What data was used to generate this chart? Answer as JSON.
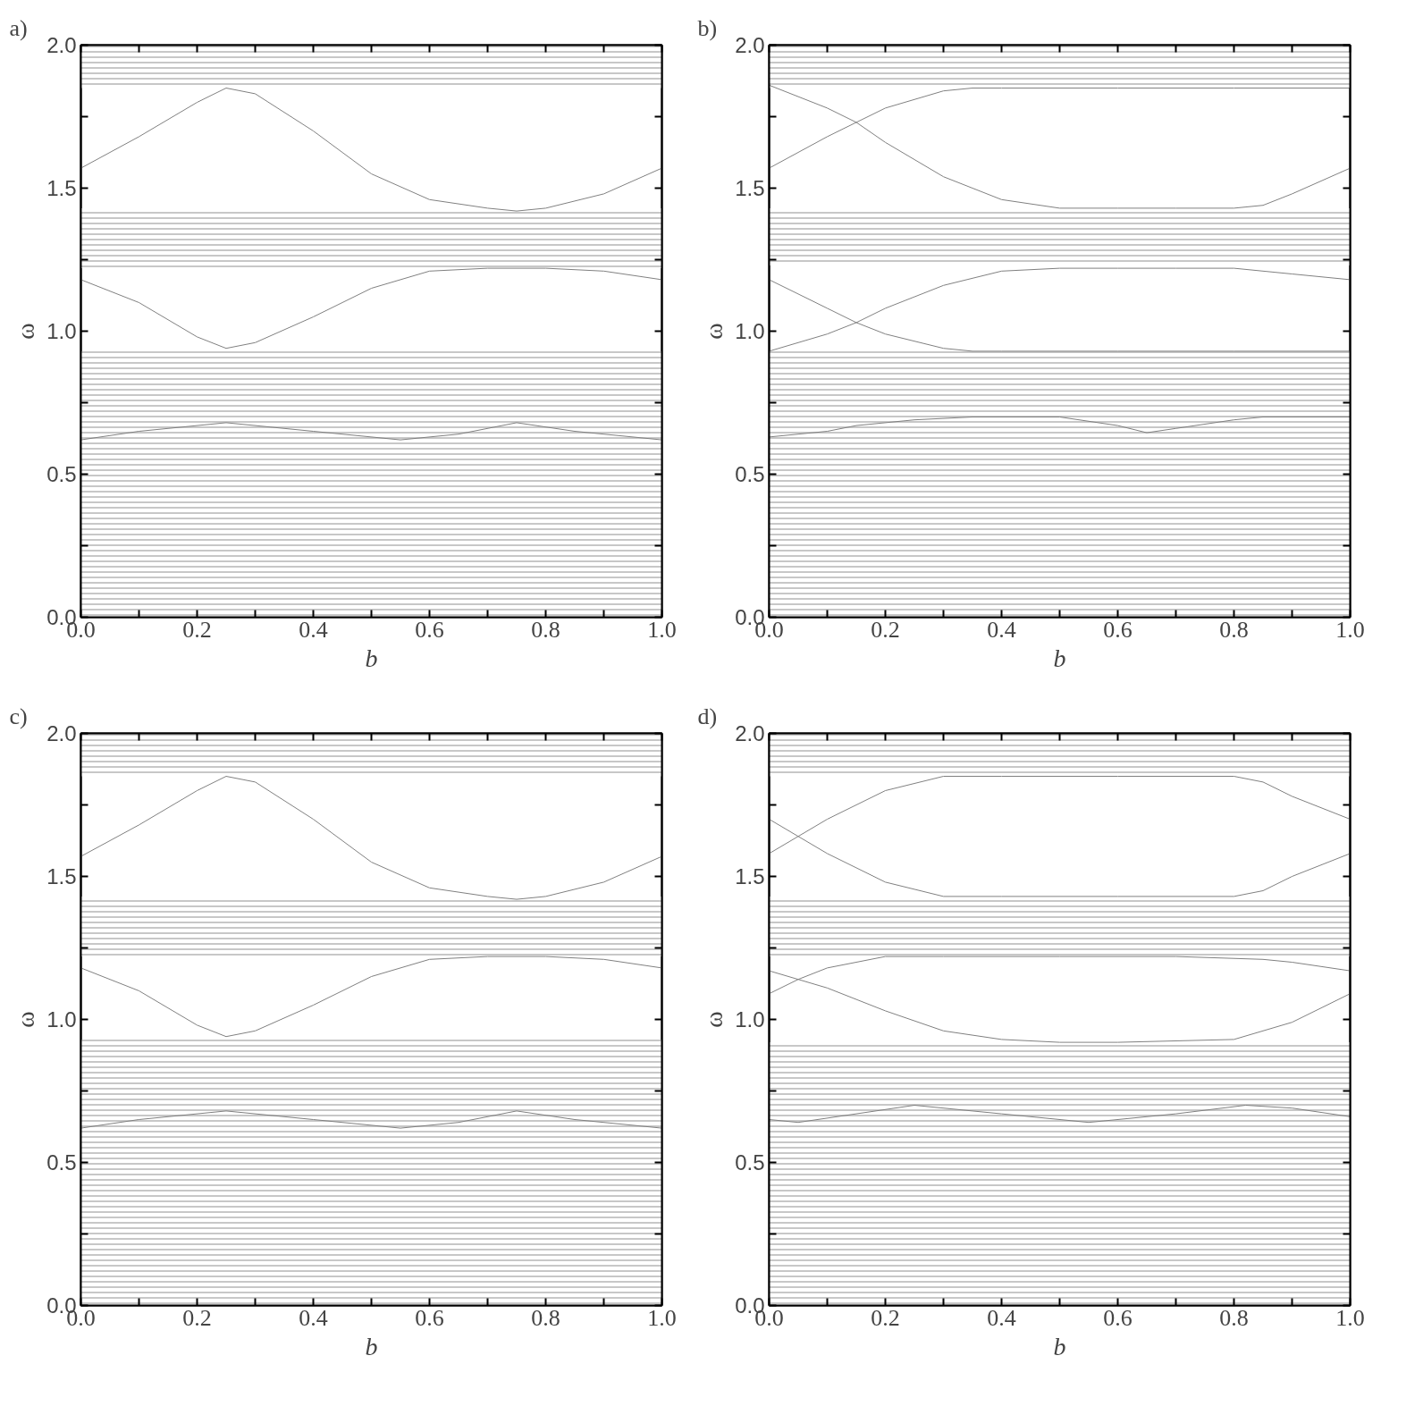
{
  "chart_data": [
    {
      "type": "line",
      "title": "a)",
      "xlabel": "b",
      "ylabel": "ω",
      "xlim": [
        0,
        1
      ],
      "ylim": [
        0,
        2
      ],
      "grid": false,
      "marker": "none",
      "line_style": "solid",
      "xticks": [
        {
          "value": 0,
          "label": "0.0"
        },
        {
          "value": 0.1,
          "label": null
        },
        {
          "value": 0.2,
          "label": "0.2"
        },
        {
          "value": 0.3,
          "label": null
        },
        {
          "value": 0.4,
          "label": "0.4"
        },
        {
          "value": 0.5,
          "label": null
        },
        {
          "value": 0.6,
          "label": "0.6"
        },
        {
          "value": 0.7,
          "label": null
        },
        {
          "value": 0.8,
          "label": "0.8"
        },
        {
          "value": 0.9,
          "label": null
        },
        {
          "value": 1,
          "label": "1.0"
        }
      ],
      "yticks": [
        {
          "value": 0,
          "label": "0.0"
        },
        {
          "value": 0.25,
          "label": null
        },
        {
          "value": 0.5,
          "label": "0.5"
        },
        {
          "value": 0.75,
          "label": null
        },
        {
          "value": 1,
          "label": "1.0"
        },
        {
          "value": 1.25,
          "label": null
        },
        {
          "value": 1.5,
          "label": "1.5"
        },
        {
          "value": 1.75,
          "label": null
        },
        {
          "value": 2,
          "label": "2.0"
        }
      ],
      "bands": [
        {
          "axis": "y",
          "from": 1.85,
          "to": 2.0,
          "color": "#909090"
        },
        {
          "axis": "y",
          "from": 1.22,
          "to": 1.43,
          "color": "#909090"
        },
        {
          "axis": "y",
          "from": 0,
          "to": 0.93,
          "color": "#909090"
        }
      ],
      "series": [
        {
          "color": "#808080",
          "x": [
            0,
            0.1,
            0.2,
            0.25,
            0.3,
            0.4,
            0.5,
            0.6,
            0.7,
            0.75,
            0.8,
            0.9,
            1.0
          ],
          "values": [
            1.57,
            1.68,
            1.8,
            1.85,
            1.83,
            1.7,
            1.55,
            1.46,
            1.43,
            1.42,
            1.43,
            1.48,
            1.57
          ]
        },
        {
          "color": "#808080",
          "x": [
            0,
            0.1,
            0.2,
            0.25,
            0.3,
            0.4,
            0.5,
            0.6,
            0.7,
            0.8,
            0.9,
            1.0
          ],
          "values": [
            1.18,
            1.1,
            0.98,
            0.94,
            0.96,
            1.05,
            1.15,
            1.21,
            1.22,
            1.22,
            1.21,
            1.18
          ]
        },
        {
          "color": "#808080",
          "x": [
            0,
            0.1,
            0.25,
            0.4,
            0.55,
            0.65,
            0.75,
            0.85,
            1.0
          ],
          "values": [
            0.62,
            0.65,
            0.68,
            0.65,
            0.62,
            0.64,
            0.68,
            0.65,
            0.62
          ]
        }
      ]
    },
    {
      "type": "line",
      "title": "b)",
      "xlabel": "b",
      "ylabel": "ω",
      "xlim": [
        0,
        1
      ],
      "ylim": [
        0,
        2
      ],
      "grid": false,
      "marker": "none",
      "line_style": "solid",
      "xticks": [
        {
          "value": 0,
          "label": "0.0"
        },
        {
          "value": 0.1,
          "label": null
        },
        {
          "value": 0.2,
          "label": "0.2"
        },
        {
          "value": 0.3,
          "label": null
        },
        {
          "value": 0.4,
          "label": "0.4"
        },
        {
          "value": 0.5,
          "label": null
        },
        {
          "value": 0.6,
          "label": "0.6"
        },
        {
          "value": 0.7,
          "label": null
        },
        {
          "value": 0.8,
          "label": "0.8"
        },
        {
          "value": 0.9,
          "label": null
        },
        {
          "value": 1,
          "label": "1.0"
        }
      ],
      "yticks": [
        {
          "value": 0,
          "label": "0.0"
        },
        {
          "value": 0.25,
          "label": null
        },
        {
          "value": 0.5,
          "label": "0.5"
        },
        {
          "value": 0.75,
          "label": null
        },
        {
          "value": 1,
          "label": "1.0"
        },
        {
          "value": 1.25,
          "label": null
        },
        {
          "value": 1.5,
          "label": "1.5"
        },
        {
          "value": 1.75,
          "label": null
        },
        {
          "value": 2,
          "label": "2.0"
        }
      ],
      "bands": [
        {
          "axis": "y",
          "from": 1.85,
          "to": 2.0,
          "color": "#909090"
        },
        {
          "axis": "y",
          "from": 1.23,
          "to": 1.43,
          "color": "#909090"
        },
        {
          "axis": "y",
          "from": 0,
          "to": 0.93,
          "color": "#909090"
        }
      ],
      "series": [
        {
          "color": "#808080",
          "x": [
            0,
            0.1,
            0.15,
            0.2,
            0.3,
            0.4,
            0.5,
            0.6,
            0.7,
            0.8,
            0.85,
            0.9,
            1.0
          ],
          "values": [
            1.86,
            1.78,
            1.73,
            1.66,
            1.54,
            1.46,
            1.43,
            1.43,
            1.43,
            1.43,
            1.44,
            1.48,
            1.57
          ]
        },
        {
          "color": "#808080",
          "x": [
            0,
            0.1,
            0.15,
            0.2,
            0.3,
            0.35,
            0.4,
            0.6,
            0.8,
            1.0
          ],
          "values": [
            1.57,
            1.68,
            1.73,
            1.78,
            1.84,
            1.85,
            1.85,
            1.85,
            1.85,
            1.85
          ]
        },
        {
          "color": "#808080",
          "x": [
            0,
            0.1,
            0.15,
            0.2,
            0.3,
            0.35,
            0.4,
            0.6,
            0.8,
            1.0
          ],
          "values": [
            1.18,
            1.08,
            1.03,
            0.99,
            0.94,
            0.93,
            0.93,
            0.93,
            0.93,
            0.93
          ]
        },
        {
          "color": "#808080",
          "x": [
            0,
            0.1,
            0.15,
            0.2,
            0.3,
            0.4,
            0.5,
            0.6,
            0.7,
            0.8,
            0.85,
            0.9,
            1.0
          ],
          "values": [
            0.93,
            0.99,
            1.03,
            1.08,
            1.16,
            1.21,
            1.22,
            1.22,
            1.22,
            1.22,
            1.21,
            1.2,
            1.18
          ]
        },
        {
          "color": "#808080",
          "x": [
            0,
            0.1,
            0.15,
            0.25,
            0.35,
            0.5,
            0.6,
            0.65,
            0.7,
            0.8,
            0.85,
            1.0
          ],
          "values": [
            0.63,
            0.65,
            0.67,
            0.69,
            0.7,
            0.7,
            0.67,
            0.645,
            0.66,
            0.69,
            0.7,
            0.7
          ]
        }
      ]
    },
    {
      "type": "line",
      "title": "c)",
      "xlabel": "b",
      "ylabel": "ω",
      "xlim": [
        0,
        1
      ],
      "ylim": [
        0,
        2
      ],
      "grid": false,
      "marker": "none",
      "line_style": "solid",
      "xticks": [
        {
          "value": 0,
          "label": "0.0"
        },
        {
          "value": 0.1,
          "label": null
        },
        {
          "value": 0.2,
          "label": "0.2"
        },
        {
          "value": 0.3,
          "label": null
        },
        {
          "value": 0.4,
          "label": "0.4"
        },
        {
          "value": 0.5,
          "label": null
        },
        {
          "value": 0.6,
          "label": "0.6"
        },
        {
          "value": 0.7,
          "label": null
        },
        {
          "value": 0.8,
          "label": "0.8"
        },
        {
          "value": 0.9,
          "label": null
        },
        {
          "value": 1,
          "label": "1.0"
        }
      ],
      "yticks": [
        {
          "value": 0,
          "label": "0.0"
        },
        {
          "value": 0.25,
          "label": null
        },
        {
          "value": 0.5,
          "label": "0.5"
        },
        {
          "value": 0.75,
          "label": null
        },
        {
          "value": 1,
          "label": "1.0"
        },
        {
          "value": 1.25,
          "label": null
        },
        {
          "value": 1.5,
          "label": "1.5"
        },
        {
          "value": 1.75,
          "label": null
        },
        {
          "value": 2,
          "label": "2.0"
        }
      ],
      "bands": [
        {
          "axis": "y",
          "from": 1.85,
          "to": 2.0,
          "color": "#909090"
        },
        {
          "axis": "y",
          "from": 1.22,
          "to": 1.43,
          "color": "#909090"
        },
        {
          "axis": "y",
          "from": 0,
          "to": 0.93,
          "color": "#909090"
        }
      ],
      "series": [
        {
          "color": "#808080",
          "x": [
            0,
            0.1,
            0.2,
            0.25,
            0.3,
            0.4,
            0.5,
            0.6,
            0.7,
            0.75,
            0.8,
            0.9,
            1.0
          ],
          "values": [
            1.57,
            1.68,
            1.8,
            1.85,
            1.83,
            1.7,
            1.55,
            1.46,
            1.43,
            1.42,
            1.43,
            1.48,
            1.57
          ]
        },
        {
          "color": "#808080",
          "x": [
            0,
            0.1,
            0.2,
            0.25,
            0.3,
            0.4,
            0.5,
            0.6,
            0.7,
            0.8,
            0.9,
            1.0
          ],
          "values": [
            1.18,
            1.1,
            0.98,
            0.94,
            0.96,
            1.05,
            1.15,
            1.21,
            1.22,
            1.22,
            1.21,
            1.18
          ]
        },
        {
          "color": "#808080",
          "x": [
            0,
            0.1,
            0.25,
            0.4,
            0.55,
            0.65,
            0.75,
            0.85,
            1.0
          ],
          "values": [
            0.62,
            0.65,
            0.68,
            0.65,
            0.62,
            0.64,
            0.68,
            0.65,
            0.62
          ]
        }
      ]
    },
    {
      "type": "line",
      "title": "d)",
      "xlabel": "b",
      "ylabel": "ω",
      "xlim": [
        0,
        1
      ],
      "ylim": [
        0,
        2
      ],
      "grid": false,
      "marker": "none",
      "line_style": "solid",
      "xticks": [
        {
          "value": 0,
          "label": "0.0"
        },
        {
          "value": 0.1,
          "label": null
        },
        {
          "value": 0.2,
          "label": "0.2"
        },
        {
          "value": 0.3,
          "label": null
        },
        {
          "value": 0.4,
          "label": "0.4"
        },
        {
          "value": 0.5,
          "label": null
        },
        {
          "value": 0.6,
          "label": "0.6"
        },
        {
          "value": 0.7,
          "label": null
        },
        {
          "value": 0.8,
          "label": "0.8"
        },
        {
          "value": 0.9,
          "label": null
        },
        {
          "value": 1,
          "label": "1.0"
        }
      ],
      "yticks": [
        {
          "value": 0,
          "label": "0.0"
        },
        {
          "value": 0.25,
          "label": null
        },
        {
          "value": 0.5,
          "label": "0.5"
        },
        {
          "value": 0.75,
          "label": null
        },
        {
          "value": 1,
          "label": "1.0"
        },
        {
          "value": 1.25,
          "label": null
        },
        {
          "value": 1.5,
          "label": "1.5"
        },
        {
          "value": 1.75,
          "label": null
        },
        {
          "value": 2,
          "label": "2.0"
        }
      ],
      "bands": [
        {
          "axis": "y",
          "from": 1.85,
          "to": 2.0,
          "color": "#909090"
        },
        {
          "axis": "y",
          "from": 1.22,
          "to": 1.43,
          "color": "#909090"
        },
        {
          "axis": "y",
          "from": 0,
          "to": 0.92,
          "color": "#909090"
        }
      ],
      "series": [
        {
          "color": "#808080",
          "x": [
            0,
            0.1,
            0.2,
            0.3,
            0.4,
            0.6,
            0.8,
            0.85,
            0.9,
            1.0
          ],
          "values": [
            1.58,
            1.7,
            1.8,
            1.85,
            1.85,
            1.85,
            1.85,
            1.83,
            1.78,
            1.7
          ]
        },
        {
          "color": "#808080",
          "x": [
            0,
            0.1,
            0.2,
            0.3,
            0.4,
            0.6,
            0.8,
            0.85,
            0.9,
            1.0
          ],
          "values": [
            1.7,
            1.58,
            1.48,
            1.43,
            1.43,
            1.43,
            1.43,
            1.45,
            1.5,
            1.58
          ]
        },
        {
          "color": "#808080",
          "x": [
            0,
            0.05,
            0.1,
            0.2,
            0.3,
            0.5,
            0.7,
            0.85,
            0.9,
            1.0
          ],
          "values": [
            1.09,
            1.14,
            1.18,
            1.22,
            1.22,
            1.22,
            1.22,
            1.21,
            1.2,
            1.17
          ]
        },
        {
          "color": "#808080",
          "x": [
            0,
            0.1,
            0.2,
            0.3,
            0.4,
            0.5,
            0.6,
            0.8,
            0.9,
            1.0
          ],
          "values": [
            1.17,
            1.11,
            1.03,
            0.96,
            0.93,
            0.92,
            0.92,
            0.93,
            0.99,
            1.09
          ]
        },
        {
          "color": "#808080",
          "x": [
            0,
            0.05,
            0.15,
            0.25,
            0.4,
            0.55,
            0.7,
            0.82,
            0.9,
            1.0
          ],
          "values": [
            0.65,
            0.64,
            0.67,
            0.7,
            0.67,
            0.64,
            0.67,
            0.7,
            0.69,
            0.66
          ]
        }
      ]
    }
  ]
}
